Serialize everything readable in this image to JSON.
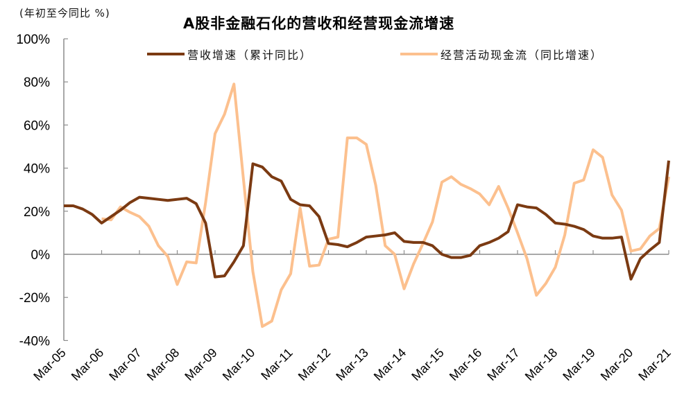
{
  "chart": {
    "title": "A股非金融石化的营收和经营现金流增速",
    "unit_label": "(年初至今同比 %)",
    "legend": [
      {
        "label": "营收增速（累计同比）",
        "color": "#7B3A12"
      },
      {
        "label": "经营活动现金流（同比增速）",
        "color": "#FCC08E"
      }
    ]
  },
  "chart_data": {
    "type": "line",
    "title": "A股非金融石化的营收和经营现金流增速",
    "ylabel": "(年初至今同比 %)",
    "xlabel": "",
    "ylim": [
      -40,
      100
    ],
    "yticks": [
      "-40%",
      "-20%",
      "0%",
      "20%",
      "40%",
      "60%",
      "80%",
      "100%"
    ],
    "xtick_labels": [
      "Mar-05",
      "Mar-06",
      "Mar-07",
      "Mar-08",
      "Mar-09",
      "Mar-10",
      "Mar-11",
      "Mar-12",
      "Mar-13",
      "Mar-14",
      "Mar-15",
      "Mar-16",
      "Mar-17",
      "Mar-18",
      "Mar-19",
      "Mar-20",
      "Mar-21"
    ],
    "x_frequency": "quarterly",
    "grid": false,
    "legend_position": "top",
    "series": [
      {
        "name": "营收增速（累计同比）",
        "color": "#7B3A12",
        "start_index": 0,
        "values": [
          22.5,
          22.5,
          21,
          18.5,
          14.5,
          17.5,
          20.5,
          24,
          26.5,
          26,
          25.5,
          25,
          25.5,
          26,
          23.5,
          14.5,
          -10.5,
          -10,
          -3.5,
          4,
          42,
          40.5,
          36,
          34,
          25.5,
          23,
          22.5,
          17.5,
          5,
          4.5,
          3.5,
          5.5,
          8,
          8.5,
          9,
          10,
          6,
          5.5,
          5.5,
          4,
          0,
          -1.5,
          -1.5,
          -0.5,
          4,
          5.5,
          7.5,
          10.5,
          23,
          22,
          21.5,
          18.5,
          14.5,
          14,
          13,
          11.5,
          8.5,
          7.5,
          7.5,
          8,
          -11.5,
          -2,
          2,
          5.5,
          43.5
        ]
      },
      {
        "name": "经营活动现金流（同比增速）",
        "color": "#FCC08E",
        "start_index": 4,
        "values": [
          16.5,
          16,
          22,
          19.5,
          17.5,
          13,
          4,
          -1,
          -14,
          -3.5,
          -4,
          24,
          56,
          65,
          79,
          35,
          -8,
          -33.5,
          -31,
          -16.5,
          -9,
          21.5,
          -5.5,
          -5,
          7,
          8,
          54,
          54,
          51,
          32,
          4,
          0,
          -16,
          -4.5,
          5,
          15,
          33.5,
          36,
          32.5,
          30.5,
          28,
          23,
          31.5,
          21.5,
          10,
          -2,
          -19,
          -13.5,
          -6,
          9,
          33,
          34.5,
          48.5,
          45,
          27.5,
          20.5,
          1.5,
          2.5,
          8.5,
          12,
          36
        ]
      }
    ]
  }
}
